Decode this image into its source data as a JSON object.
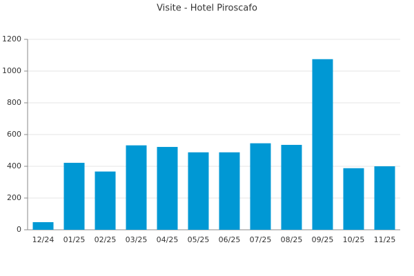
{
  "chart_data": {
    "type": "bar",
    "title": "Visite - Hotel Piroscafo",
    "categories": [
      "12/24",
      "01/25",
      "02/25",
      "03/25",
      "04/25",
      "05/25",
      "06/25",
      "07/25",
      "08/25",
      "09/25",
      "10/25",
      "11/25"
    ],
    "values": [
      48,
      422,
      367,
      532,
      522,
      488,
      488,
      545,
      535,
      1075,
      388,
      400
    ],
    "color": "#0098d4",
    "ylim": [
      0,
      1200
    ],
    "yticks": [
      0,
      200,
      400,
      600,
      800,
      1000,
      1200
    ],
    "grid": true
  }
}
